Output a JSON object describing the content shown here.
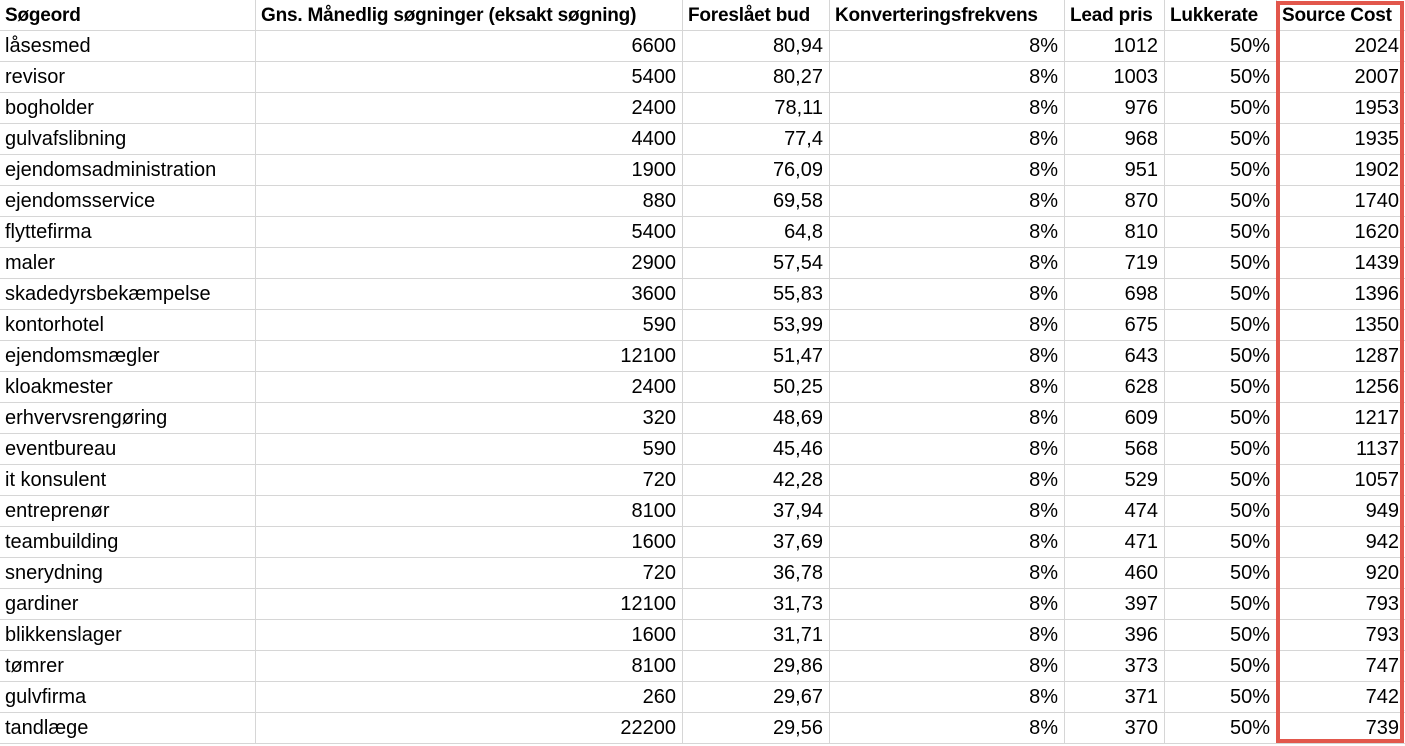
{
  "table": {
    "columns": [
      {
        "label": "Søgeord",
        "align": "left"
      },
      {
        "label": "Gns. Månedlig søgninger (eksakt søgning)",
        "align": "right"
      },
      {
        "label": "Foreslået bud",
        "align": "right"
      },
      {
        "label": "Konverteringsfrekvens",
        "align": "right"
      },
      {
        "label": "Lead pris",
        "align": "right"
      },
      {
        "label": "Lukkerate",
        "align": "right"
      },
      {
        "label": "Source Cost",
        "align": "right"
      }
    ],
    "rows": [
      [
        "låsesmed",
        "6600",
        "80,94",
        "8%",
        "1012",
        "50%",
        "2024"
      ],
      [
        "revisor",
        "5400",
        "80,27",
        "8%",
        "1003",
        "50%",
        "2007"
      ],
      [
        "bogholder",
        "2400",
        "78,11",
        "8%",
        "976",
        "50%",
        "1953"
      ],
      [
        "gulvafslibning",
        "4400",
        "77,4",
        "8%",
        "968",
        "50%",
        "1935"
      ],
      [
        "ejendomsadministration",
        "1900",
        "76,09",
        "8%",
        "951",
        "50%",
        "1902"
      ],
      [
        "ejendomsservice",
        "880",
        "69,58",
        "8%",
        "870",
        "50%",
        "1740"
      ],
      [
        "flyttefirma",
        "5400",
        "64,8",
        "8%",
        "810",
        "50%",
        "1620"
      ],
      [
        "maler",
        "2900",
        "57,54",
        "8%",
        "719",
        "50%",
        "1439"
      ],
      [
        "skadedyrsbekæmpelse",
        "3600",
        "55,83",
        "8%",
        "698",
        "50%",
        "1396"
      ],
      [
        "kontorhotel",
        "590",
        "53,99",
        "8%",
        "675",
        "50%",
        "1350"
      ],
      [
        "ejendomsmægler",
        "12100",
        "51,47",
        "8%",
        "643",
        "50%",
        "1287"
      ],
      [
        "kloakmester",
        "2400",
        "50,25",
        "8%",
        "628",
        "50%",
        "1256"
      ],
      [
        "erhvervsrengøring",
        "320",
        "48,69",
        "8%",
        "609",
        "50%",
        "1217"
      ],
      [
        "eventbureau",
        "590",
        "45,46",
        "8%",
        "568",
        "50%",
        "1137"
      ],
      [
        "it konsulent",
        "720",
        "42,28",
        "8%",
        "529",
        "50%",
        "1057"
      ],
      [
        "entreprenør",
        "8100",
        "37,94",
        "8%",
        "474",
        "50%",
        "949"
      ],
      [
        "teambuilding",
        "1600",
        "37,69",
        "8%",
        "471",
        "50%",
        "942"
      ],
      [
        "snerydning",
        "720",
        "36,78",
        "8%",
        "460",
        "50%",
        "920"
      ],
      [
        "gardiner",
        "12100",
        "31,73",
        "8%",
        "397",
        "50%",
        "793"
      ],
      [
        "blikkenslager",
        "1600",
        "31,71",
        "8%",
        "396",
        "50%",
        "793"
      ],
      [
        "tømrer",
        "8100",
        "29,86",
        "8%",
        "373",
        "50%",
        "747"
      ],
      [
        "gulvfirma",
        "260",
        "29,67",
        "8%",
        "371",
        "50%",
        "742"
      ],
      [
        "tandlæge",
        "22200",
        "29,56",
        "8%",
        "370",
        "50%",
        "739"
      ]
    ],
    "highlight": {
      "column": "Source Cost",
      "border_color": "#e2574c"
    },
    "colors": {
      "gridline": "#d6d6d6",
      "text": "#000000",
      "background": "#ffffff"
    }
  }
}
